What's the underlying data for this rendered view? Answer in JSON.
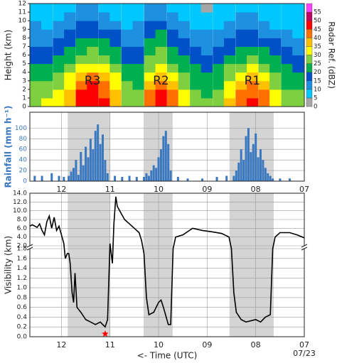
{
  "chart_data": [
    {
      "type": "heatmap",
      "ylabel": "Height (km)",
      "xlim": [
        12.65,
        7.0
      ],
      "ylim": [
        0,
        12
      ],
      "yticks": [
        0,
        1,
        2,
        3,
        4,
        5,
        6,
        7,
        8,
        9,
        10,
        11,
        12
      ],
      "x": [
        12.53,
        12.3,
        12.06,
        11.83,
        11.59,
        11.36,
        11.12,
        10.89,
        10.65,
        10.42,
        10.18,
        9.95,
        9.71,
        9.48,
        9.24,
        9.01,
        8.77,
        8.54,
        8.3,
        8.07,
        7.83,
        7.6,
        7.36,
        7.13
      ],
      "y": [
        0.5,
        1.5,
        2.5,
        3.5,
        4.5,
        5.5,
        6.5,
        7.5,
        8.5,
        9.5,
        10.5,
        11.5
      ],
      "z": [
        [
          25,
          25,
          25,
          20,
          20,
          15,
          15,
          10,
          10,
          10,
          5,
          5
        ],
        [
          30,
          25,
          25,
          20,
          20,
          15,
          15,
          10,
          10,
          5,
          5,
          5
        ],
        [
          30,
          30,
          25,
          25,
          20,
          20,
          15,
          15,
          10,
          10,
          5,
          5
        ],
        [
          35,
          35,
          30,
          30,
          25,
          20,
          20,
          15,
          15,
          10,
          10,
          5
        ],
        [
          45,
          45,
          40,
          35,
          30,
          25,
          20,
          20,
          15,
          15,
          10,
          10
        ],
        [
          45,
          45,
          45,
          40,
          30,
          25,
          25,
          20,
          15,
          15,
          10,
          10
        ],
        [
          45,
          40,
          40,
          35,
          30,
          25,
          20,
          20,
          15,
          10,
          10,
          5
        ],
        [
          35,
          35,
          30,
          30,
          25,
          20,
          20,
          15,
          15,
          10,
          5,
          5
        ],
        [
          25,
          25,
          25,
          20,
          20,
          15,
          15,
          10,
          10,
          5,
          5,
          5
        ],
        [
          25,
          25,
          20,
          20,
          20,
          15,
          15,
          10,
          10,
          10,
          5,
          5
        ],
        [
          40,
          40,
          35,
          30,
          25,
          25,
          20,
          20,
          15,
          15,
          10,
          10
        ],
        [
          45,
          45,
          40,
          35,
          30,
          25,
          25,
          20,
          20,
          15,
          10,
          10
        ],
        [
          40,
          40,
          35,
          30,
          25,
          20,
          20,
          15,
          15,
          10,
          10,
          5
        ],
        [
          30,
          30,
          25,
          25,
          20,
          20,
          15,
          15,
          10,
          10,
          5,
          5
        ],
        [
          25,
          25,
          20,
          20,
          20,
          15,
          15,
          10,
          10,
          5,
          5,
          5
        ],
        [
          25,
          20,
          20,
          20,
          15,
          15,
          10,
          10,
          10,
          5,
          5,
          0
        ],
        [
          25,
          25,
          20,
          20,
          20,
          15,
          15,
          10,
          10,
          5,
          5,
          5
        ],
        [
          35,
          30,
          30,
          25,
          25,
          20,
          15,
          15,
          10,
          10,
          5,
          5
        ],
        [
          40,
          40,
          35,
          30,
          25,
          20,
          20,
          15,
          15,
          10,
          10,
          5
        ],
        [
          45,
          40,
          40,
          35,
          30,
          25,
          20,
          15,
          15,
          10,
          10,
          5
        ],
        [
          40,
          40,
          35,
          30,
          25,
          20,
          20,
          15,
          10,
          10,
          5,
          5
        ],
        [
          30,
          30,
          25,
          25,
          20,
          20,
          15,
          15,
          10,
          5,
          5,
          5
        ],
        [
          25,
          25,
          20,
          20,
          20,
          15,
          15,
          10,
          10,
          5,
          5,
          5
        ],
        [
          25,
          25,
          20,
          20,
          15,
          15,
          10,
          10,
          5,
          5,
          5,
          5
        ]
      ],
      "annotations": [
        "R3",
        "R2",
        "R1"
      ],
      "colorbar": {
        "label": "Radar Ref. (dBZ)",
        "levels": [
          0,
          5,
          10,
          15,
          20,
          25,
          30,
          35,
          40,
          45,
          50,
          55
        ],
        "colors": [
          "#a6a6a6",
          "#00c8ff",
          "#1e90e0",
          "#0050c8",
          "#00b050",
          "#7fd040",
          "#ffff00",
          "#ffc000",
          "#ff7000",
          "#ff0000",
          "#c00060",
          "#ff40ff"
        ]
      }
    },
    {
      "type": "bar",
      "ylabel": "Rainfall (mm h⁻¹)",
      "color": "#3a78c0",
      "xlim": [
        12.65,
        7.0
      ],
      "ylim": [
        0,
        130
      ],
      "yticks": [
        0,
        20,
        40,
        60,
        80,
        100
      ],
      "xticks": [
        12,
        11,
        10,
        {
          "value": 9,
          "label": "09"
        },
        {
          "value": 8,
          "label": "08"
        },
        {
          "value": 7,
          "label": "07"
        }
      ],
      "shaded": [
        [
          11.87,
          11.0
        ],
        [
          10.31,
          9.71
        ],
        [
          8.54,
          7.63
        ]
      ],
      "grid": true,
      "x": [
        12.55,
        12.4,
        12.2,
        12.05,
        11.95,
        11.85,
        11.8,
        11.75,
        11.7,
        11.65,
        11.6,
        11.55,
        11.5,
        11.45,
        11.4,
        11.35,
        11.3,
        11.25,
        11.2,
        11.15,
        11.1,
        11.05,
        10.9,
        10.75,
        10.6,
        10.45,
        10.3,
        10.25,
        10.2,
        10.15,
        10.1,
        10.05,
        10.0,
        9.95,
        9.9,
        9.85,
        9.8,
        9.75,
        9.6,
        9.4,
        9.1,
        8.8,
        8.6,
        8.45,
        8.4,
        8.35,
        8.3,
        8.25,
        8.2,
        8.15,
        8.1,
        8.05,
        8.0,
        7.95,
        7.9,
        7.85,
        7.8,
        7.75,
        7.7,
        7.65,
        7.5,
        7.3
      ],
      "values": [
        10,
        10,
        15,
        10,
        8,
        10,
        18,
        25,
        40,
        12,
        55,
        30,
        65,
        45,
        80,
        60,
        95,
        107,
        70,
        88,
        40,
        15,
        10,
        8,
        10,
        8,
        8,
        15,
        10,
        20,
        30,
        25,
        45,
        60,
        85,
        95,
        70,
        20,
        8,
        5,
        5,
        8,
        10,
        10,
        20,
        35,
        60,
        40,
        85,
        100,
        55,
        70,
        90,
        45,
        60,
        40,
        25,
        15,
        10,
        5,
        5,
        5
      ]
    },
    {
      "type": "line",
      "ylabel": "Visibility (km)",
      "xlabel": "<- Time (UTC)",
      "date_label": "07/23",
      "color": "#000000",
      "xlim": [
        12.65,
        7.0
      ],
      "xticks": [
        12,
        11,
        10,
        {
          "value": 9,
          "label": "09"
        },
        {
          "value": 8,
          "label": "08"
        },
        {
          "value": 7,
          "label": "07"
        }
      ],
      "ylim_upper": [
        2,
        14
      ],
      "ylim_lower": [
        0,
        1.8
      ],
      "yticks_upper": [
        {
          "value": 2,
          "label": "2.0"
        },
        {
          "value": 4,
          "label": "4.0"
        },
        {
          "value": 6,
          "label": "6.0"
        },
        {
          "value": 8,
          "label": "8.0"
        },
        {
          "value": 10,
          "label": "10.0"
        },
        {
          "value": 12,
          "label": "12.0"
        },
        {
          "value": 14,
          "label": "14.0"
        }
      ],
      "yticks_lower": [
        {
          "value": 0,
          "label": "0.0"
        },
        {
          "value": 0.2,
          "label": "0.2"
        },
        {
          "value": 0.4,
          "label": "0.4"
        },
        {
          "value": 0.6,
          "label": "0.6"
        },
        {
          "value": 0.8,
          "label": "0.8"
        },
        {
          "value": 1,
          "label": "1.0"
        },
        {
          "value": 1.2,
          "label": "1.2"
        },
        {
          "value": 1.4,
          "label": "1.4"
        },
        {
          "value": 1.6,
          "label": "1.6"
        },
        {
          "value": 1.8,
          "label": "1.8"
        }
      ],
      "shaded": [
        [
          11.87,
          11.0
        ],
        [
          10.31,
          9.71
        ],
        [
          8.54,
          7.63
        ]
      ],
      "grid": true,
      "x": [
        12.65,
        12.6,
        12.5,
        12.45,
        12.4,
        12.35,
        12.3,
        12.25,
        12.2,
        12.15,
        12.1,
        12.05,
        12.0,
        11.95,
        11.92,
        11.88,
        11.85,
        11.82,
        11.78,
        11.75,
        11.72,
        11.68,
        11.6,
        11.5,
        11.4,
        11.3,
        11.2,
        11.1,
        11.05,
        11.0,
        10.95,
        10.92,
        10.88,
        10.85,
        10.8,
        10.7,
        10.6,
        10.5,
        10.4,
        10.35,
        10.3,
        10.25,
        10.2,
        10.1,
        10.0,
        9.95,
        9.9,
        9.8,
        9.75,
        9.7,
        9.65,
        9.5,
        9.3,
        9.1,
        8.9,
        8.7,
        8.55,
        8.5,
        8.45,
        8.4,
        8.3,
        8.2,
        8.0,
        7.9,
        7.8,
        7.7,
        7.65,
        7.6,
        7.5,
        7.3,
        7.15,
        7.0
      ],
      "values": [
        6.5,
        6.8,
        6.2,
        7,
        5.5,
        4.5,
        7.5,
        8.8,
        6,
        8.5,
        5.5,
        6.5,
        4.5,
        2.5,
        1.6,
        1.7,
        1.7,
        1.5,
        0.9,
        0.7,
        1.3,
        0.6,
        0.5,
        0.35,
        0.3,
        0.25,
        0.3,
        0.2,
        0.35,
        2.5,
        1.5,
        7,
        13.2,
        11,
        10,
        8,
        7,
        6,
        5,
        3.2,
        1.7,
        0.8,
        0.45,
        0.5,
        0.7,
        0.75,
        0.6,
        0.25,
        0.25,
        1.8,
        4,
        4.5,
        6,
        5.5,
        5.2,
        4.8,
        4,
        1.8,
        0.9,
        0.5,
        0.35,
        0.3,
        0.35,
        0.3,
        0.4,
        0.45,
        1.8,
        4,
        5,
        5,
        4.5,
        3.8
      ],
      "marker": {
        "x": 11.1,
        "y": 0,
        "color": "#ff0000"
      }
    }
  ]
}
